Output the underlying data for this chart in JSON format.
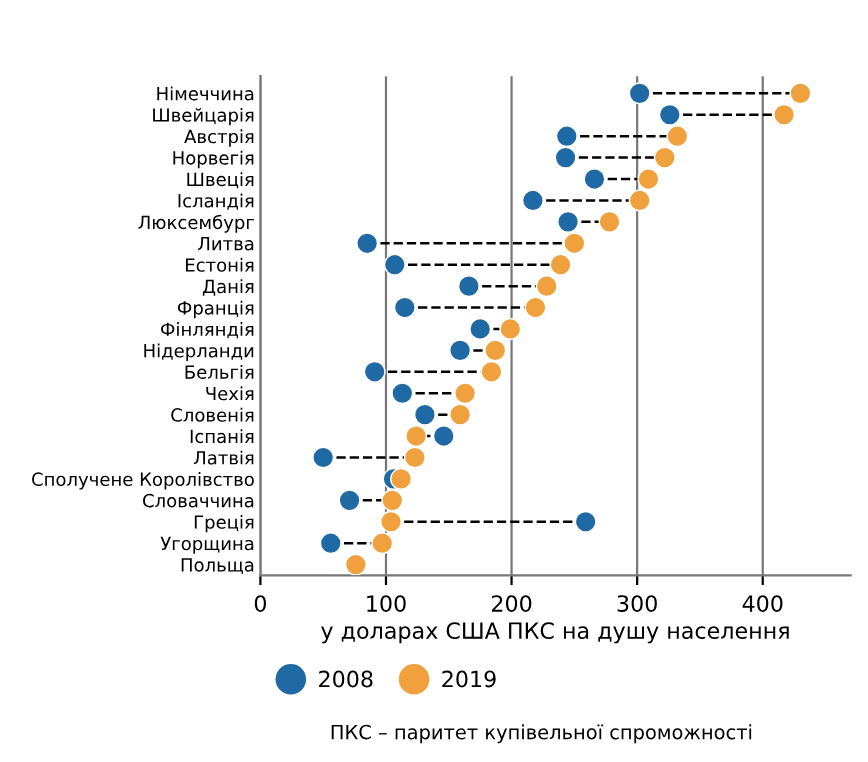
{
  "chart_data": {
    "type": "scatter",
    "orientation": "horizontal",
    "categories": [
      "Німеччина",
      "Швейцарія",
      "Австрія",
      "Норвегія",
      "Швеція",
      "Ісландія",
      "Люксембург",
      "Литва",
      "Естонія",
      "Данія",
      "Франція",
      "Фінляндія",
      "Нідерланди",
      "Бельгія",
      "Чехія",
      "Словенія",
      "Іспанія",
      "Латвія",
      "Сполучене Королівство",
      "Словаччина",
      "Греція",
      "Угорщина",
      "Польща"
    ],
    "series": [
      {
        "name": "2008",
        "color": "#1f6aa5",
        "values": [
          302,
          326,
          244,
          243,
          266,
          217,
          245,
          85,
          107,
          166,
          115,
          175,
          159,
          91,
          113,
          131,
          146,
          50,
          106,
          71,
          259,
          56,
          null
        ]
      },
      {
        "name": "2019",
        "color": "#f0a03c",
        "values": [
          430,
          417,
          332,
          322,
          309,
          302,
          278,
          250,
          239,
          228,
          219,
          199,
          187,
          184,
          163,
          159,
          124,
          123,
          112,
          105,
          104,
          97,
          76
        ]
      }
    ],
    "xlabel": "у доларах США ПКС на душу населення",
    "xlim": [
      0,
      470
    ],
    "xticks": [
      0,
      100,
      200,
      300,
      400
    ],
    "grid": "x",
    "legend": "bottom left",
    "marker": "circle",
    "line_style": "dashed",
    "annotations": [
      "ПКС – паритет купівельної спроможності"
    ]
  }
}
